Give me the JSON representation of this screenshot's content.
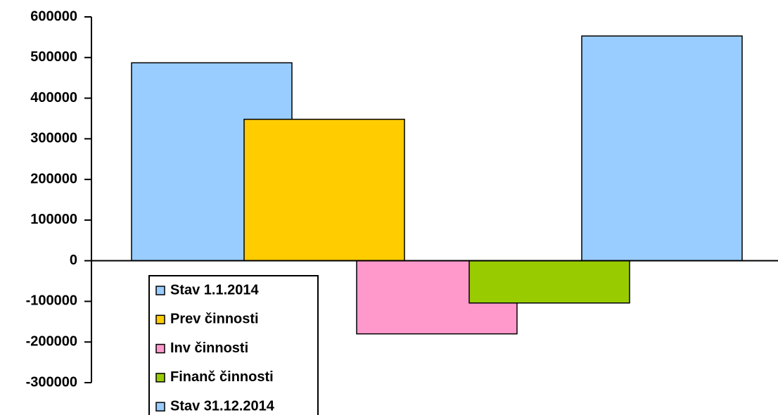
{
  "chart_data": {
    "type": "bar",
    "series": [
      {
        "name": "Stav 1.1.2014",
        "color": "#99ccff",
        "values": [
          487000
        ]
      },
      {
        "name": "Prev činnosti",
        "color": "#ffcc00",
        "values": [
          348000
        ]
      },
      {
        "name": "Inv činnosti",
        "color": "#ff99cc",
        "values": [
          -180000
        ]
      },
      {
        "name": "Finanč činnosti",
        "color": "#99cc00",
        "values": [
          -104000
        ]
      },
      {
        "name": "Stav 31.12.2014",
        "color": "#99ccff",
        "values": [
          553000
        ]
      }
    ],
    "ylim": [
      -300000,
      600000
    ],
    "yticks": [
      -300000,
      -200000,
      -100000,
      0,
      100000,
      200000,
      300000,
      400000,
      500000,
      600000
    ],
    "grid": false
  }
}
